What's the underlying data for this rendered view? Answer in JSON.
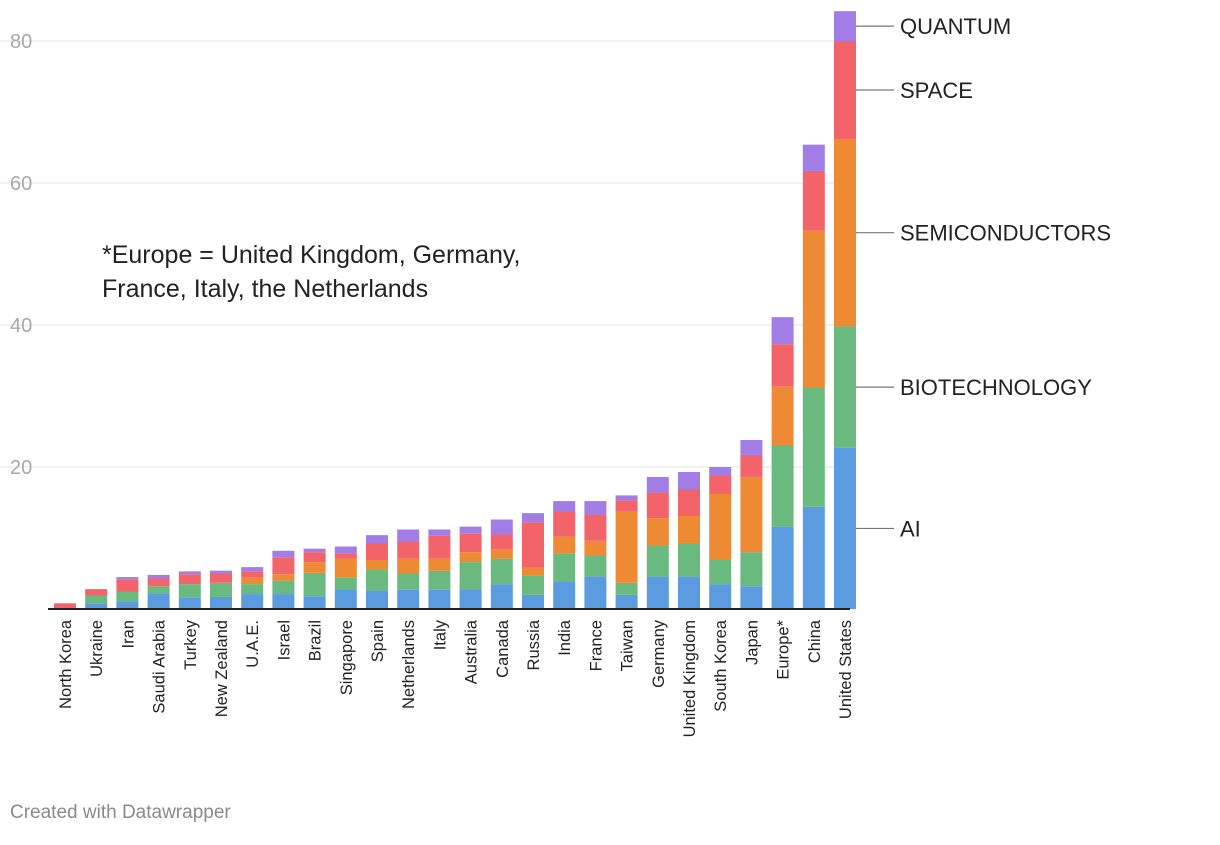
{
  "chart_data": {
    "type": "bar",
    "stacked": true,
    "categories": [
      "North Korea",
      "Ukraine",
      "Iran",
      "Saudi Arabia",
      "Turkey",
      "New Zealand",
      "U.A.E.",
      "Israel",
      "Brazil",
      "Singapore",
      "Spain",
      "Netherlands",
      "Italy",
      "Australia",
      "Canada",
      "Russia",
      "India",
      "France",
      "Taiwan",
      "Germany",
      "United Kingdom",
      "South Korea",
      "Japan",
      "Europe*",
      "China",
      "United States"
    ],
    "series": [
      {
        "name": "AI",
        "color": "#5b9bdf",
        "values": [
          0,
          0.8,
          1.1,
          2.2,
          1.6,
          1.7,
          2.1,
          2.1,
          1.8,
          2.8,
          2.6,
          2.7,
          2.7,
          2.8,
          3.5,
          2.0,
          3.8,
          4.6,
          2.0,
          4.6,
          4.6,
          3.5,
          3.2,
          11.6,
          14.4,
          22.7
        ]
      },
      {
        "name": "BIOTECHNOLOGY",
        "color": "#6ab97f",
        "values": [
          0,
          1.1,
          1.3,
          1.0,
          1.9,
          2.0,
          1.4,
          1.9,
          3.3,
          1.6,
          2.9,
          2.3,
          2.7,
          3.8,
          3.6,
          2.7,
          4.0,
          3.0,
          1.7,
          4.4,
          4.7,
          3.4,
          4.8,
          11.5,
          16.8,
          17.1
        ]
      },
      {
        "name": "SEMICONDUCTORS",
        "color": "#ef8a34",
        "values": [
          0,
          0,
          0,
          0,
          0,
          0,
          0.9,
          0.9,
          1.5,
          2.7,
          1.4,
          2.1,
          1.7,
          1.4,
          1.3,
          1.1,
          2.4,
          2.0,
          10.0,
          3.8,
          3.8,
          9.3,
          10.6,
          8.2,
          22.1,
          26.4
        ]
      },
      {
        "name": "SPACE",
        "color": "#f3646a",
        "values": [
          0.8,
          0.9,
          1.7,
          1.1,
          1.4,
          1.3,
          0.9,
          2.3,
          1.4,
          0.7,
          2.4,
          2.4,
          3.2,
          2.6,
          2.1,
          6.4,
          3.6,
          3.7,
          1.6,
          3.6,
          3.8,
          2.6,
          3.1,
          6.0,
          8.4,
          13.8
        ]
      },
      {
        "name": "QUANTUM",
        "color": "#a17de5",
        "values": [
          0,
          0,
          0.4,
          0.5,
          0.4,
          0.4,
          0.6,
          1.0,
          0.5,
          1.0,
          1.1,
          1.7,
          0.9,
          1.0,
          2.1,
          1.3,
          1.4,
          1.9,
          0.7,
          2.2,
          2.4,
          1.2,
          2.1,
          3.8,
          3.7,
          4.2
        ]
      }
    ],
    "title": "",
    "xlabel": "",
    "ylabel": "",
    "ylim": [
      0,
      84
    ],
    "yticks": [
      20,
      40,
      60,
      80
    ],
    "grid": true,
    "legend": "right, labels aligned to United States bar segments",
    "annotation_lines": [
      "*Europe = United Kingdom, Germany,",
      "France, Italy, the Netherlands"
    ]
  },
  "credit": "Created with Datawrapper"
}
